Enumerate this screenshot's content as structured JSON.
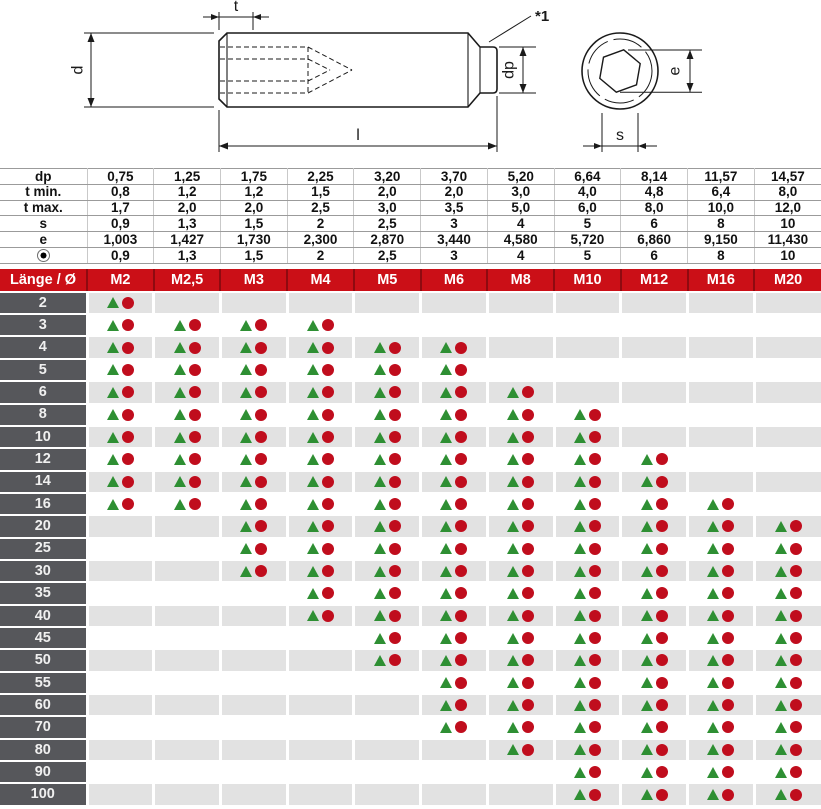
{
  "drawing": {
    "dimension_labels": {
      "socket_depth": "t",
      "diameter": "d",
      "length": "l",
      "point_diameter": "dp",
      "hex_across_corners": "e",
      "hex_across_flats": "s"
    },
    "note": "*1"
  },
  "table": {
    "header": {
      "label": "Länge / Ø",
      "columns": [
        "M2",
        "M2,5",
        "M3",
        "M4",
        "M5",
        "M6",
        "M8",
        "M10",
        "M12",
        "M16",
        "M20"
      ]
    },
    "spec_rows": [
      {
        "label": "dp",
        "values": [
          "0,75",
          "1,25",
          "1,75",
          "2,25",
          "3,20",
          "3,70",
          "5,20",
          "6,64",
          "8,14",
          "11,57",
          "14,57"
        ]
      },
      {
        "label": "t min.",
        "values": [
          "0,8",
          "1,2",
          "1,2",
          "1,5",
          "2,0",
          "2,0",
          "3,0",
          "4,0",
          "4,8",
          "6,4",
          "8,0"
        ]
      },
      {
        "label": "t max.",
        "values": [
          "1,7",
          "2,0",
          "2,0",
          "2,5",
          "3,0",
          "3,5",
          "5,0",
          "6,0",
          "8,0",
          "10,0",
          "12,0"
        ]
      },
      {
        "label": "s",
        "values": [
          "0,9",
          "1,3",
          "1,5",
          "2",
          "2,5",
          "3",
          "4",
          "5",
          "6",
          "8",
          "10"
        ]
      },
      {
        "label": "e",
        "values": [
          "1,003",
          "1,427",
          "1,730",
          "2,300",
          "2,870",
          "3,440",
          "4,580",
          "5,720",
          "6,860",
          "9,150",
          "11,430"
        ]
      },
      {
        "label": "",
        "icon": "ball-icon",
        "values": [
          "0,9",
          "1,3",
          "1,5",
          "2",
          "2,5",
          "3",
          "4",
          "5",
          "6",
          "8",
          "10"
        ]
      }
    ],
    "rows": [
      {
        "length": "2",
        "marks": [
          1,
          0,
          0,
          0,
          0,
          0,
          0,
          0,
          0,
          0,
          0
        ]
      },
      {
        "length": "3",
        "marks": [
          1,
          1,
          1,
          1,
          0,
          0,
          0,
          0,
          0,
          0,
          0
        ]
      },
      {
        "length": "4",
        "marks": [
          1,
          1,
          1,
          1,
          1,
          1,
          0,
          0,
          0,
          0,
          0
        ]
      },
      {
        "length": "5",
        "marks": [
          1,
          1,
          1,
          1,
          1,
          1,
          0,
          0,
          0,
          0,
          0
        ]
      },
      {
        "length": "6",
        "marks": [
          1,
          1,
          1,
          1,
          1,
          1,
          1,
          0,
          0,
          0,
          0
        ]
      },
      {
        "length": "8",
        "marks": [
          1,
          1,
          1,
          1,
          1,
          1,
          1,
          1,
          0,
          0,
          0
        ]
      },
      {
        "length": "10",
        "marks": [
          1,
          1,
          1,
          1,
          1,
          1,
          1,
          1,
          0,
          0,
          0
        ]
      },
      {
        "length": "12",
        "marks": [
          1,
          1,
          1,
          1,
          1,
          1,
          1,
          1,
          1,
          0,
          0
        ]
      },
      {
        "length": "14",
        "marks": [
          1,
          1,
          1,
          1,
          1,
          1,
          1,
          1,
          1,
          0,
          0
        ]
      },
      {
        "length": "16",
        "marks": [
          1,
          1,
          1,
          1,
          1,
          1,
          1,
          1,
          1,
          1,
          0
        ]
      },
      {
        "length": "20",
        "marks": [
          0,
          0,
          1,
          1,
          1,
          1,
          1,
          1,
          1,
          1,
          1
        ]
      },
      {
        "length": "25",
        "marks": [
          0,
          0,
          1,
          1,
          1,
          1,
          1,
          1,
          1,
          1,
          1
        ]
      },
      {
        "length": "30",
        "marks": [
          0,
          0,
          1,
          1,
          1,
          1,
          1,
          1,
          1,
          1,
          1
        ]
      },
      {
        "length": "35",
        "marks": [
          0,
          0,
          0,
          1,
          1,
          1,
          1,
          1,
          1,
          1,
          1
        ]
      },
      {
        "length": "40",
        "marks": [
          0,
          0,
          0,
          1,
          1,
          1,
          1,
          1,
          1,
          1,
          1
        ]
      },
      {
        "length": "45",
        "marks": [
          0,
          0,
          0,
          0,
          1,
          1,
          1,
          1,
          1,
          1,
          1
        ]
      },
      {
        "length": "50",
        "marks": [
          0,
          0,
          0,
          0,
          1,
          1,
          1,
          1,
          1,
          1,
          1
        ]
      },
      {
        "length": "55",
        "marks": [
          0,
          0,
          0,
          0,
          0,
          1,
          1,
          1,
          1,
          1,
          1
        ]
      },
      {
        "length": "60",
        "marks": [
          0,
          0,
          0,
          0,
          0,
          1,
          1,
          1,
          1,
          1,
          1
        ]
      },
      {
        "length": "70",
        "marks": [
          0,
          0,
          0,
          0,
          0,
          1,
          1,
          1,
          1,
          1,
          1
        ]
      },
      {
        "length": "80",
        "marks": [
          0,
          0,
          0,
          0,
          0,
          0,
          1,
          1,
          1,
          1,
          1
        ]
      },
      {
        "length": "90",
        "marks": [
          0,
          0,
          0,
          0,
          0,
          0,
          0,
          1,
          1,
          1,
          1
        ]
      },
      {
        "length": "100",
        "marks": [
          0,
          0,
          0,
          0,
          0,
          0,
          0,
          1,
          1,
          1,
          1
        ]
      }
    ]
  },
  "colors": {
    "header_red": "#cb0f17",
    "header_separator": "#8f0a10",
    "row_label_bg": "#56575b",
    "row_label_text": "#f0f0f0",
    "stripe_gray": "#e2e2e2",
    "triangle_green": "#2e8f33",
    "circle_red": "#c00d1d",
    "drawing_ink": "#1a1a1a"
  }
}
